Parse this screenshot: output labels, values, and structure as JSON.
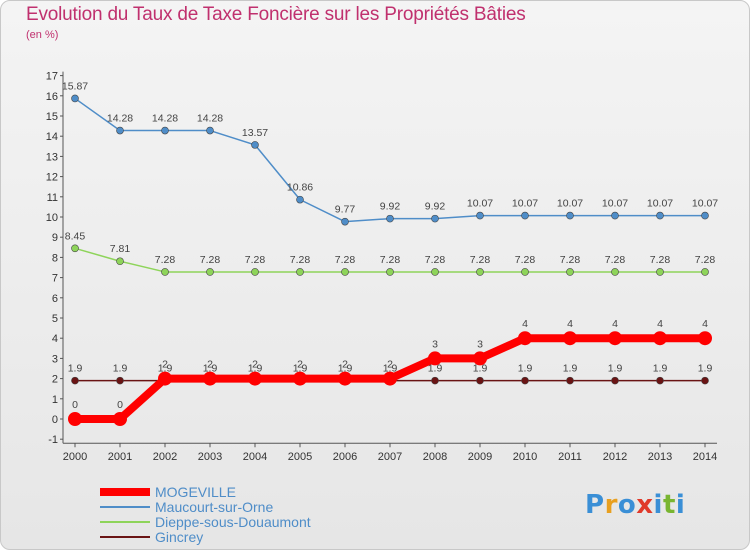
{
  "title": "Evolution du Taux de Taxe Foncière sur les Propriétés Bâties",
  "subtitle": "(en %)",
  "logo": {
    "text": "Proxiti",
    "letters": [
      "P",
      "r",
      "o",
      "x",
      "i",
      "t",
      "i"
    ]
  },
  "colors": {
    "title": "#c0306e",
    "mogeville": "#ff0000",
    "maucourt": "#4f8dc8",
    "dieppe": "#8ed45a",
    "gincrey": "#6a1414",
    "axis": "#555555"
  },
  "chart_data": {
    "type": "line",
    "title": "Evolution du Taux de Taxe Foncière sur les Propriétés Bâties",
    "ylabel": "(en %)",
    "xlabel": "",
    "ylim": [
      -1,
      17
    ],
    "yticks": [
      "-1",
      "0",
      "1",
      "2",
      "3",
      "4",
      "5",
      "6",
      "7",
      "8",
      "9",
      "10",
      "11",
      "12",
      "13",
      "14",
      "15",
      "16",
      "17"
    ],
    "x": [
      "2000",
      "2001",
      "2002",
      "2003",
      "2004",
      "2005",
      "2006",
      "2007",
      "2008",
      "2009",
      "2010",
      "2011",
      "2012",
      "2013",
      "2014"
    ],
    "series": [
      {
        "name": "Maucourt-sur-Orne",
        "color": "#4f8dc8",
        "values": [
          15.87,
          14.28,
          14.28,
          14.28,
          13.57,
          10.86,
          9.77,
          9.92,
          9.92,
          10.07,
          10.07,
          10.07,
          10.07,
          10.07,
          10.07
        ],
        "labels": [
          "15.87",
          "14.28",
          "14.28",
          "14.28",
          "13.57",
          "10.86",
          "9.77",
          "9.92",
          "9.92",
          "10.07",
          "10.07",
          "10.07",
          "10.07",
          "10.07",
          "10.07"
        ]
      },
      {
        "name": "Dieppe-sous-Douaumont",
        "color": "#8ed45a",
        "values": [
          8.45,
          7.81,
          7.28,
          7.28,
          7.28,
          7.28,
          7.28,
          7.28,
          7.28,
          7.28,
          7.28,
          7.28,
          7.28,
          7.28,
          7.28
        ],
        "labels": [
          "8.45",
          "7.81",
          "7.28",
          "7.28",
          "7.28",
          "7.28",
          "7.28",
          "7.28",
          "7.28",
          "7.28",
          "7.28",
          "7.28",
          "7.28",
          "7.28",
          "7.28"
        ]
      },
      {
        "name": "Gincrey",
        "color": "#6a1414",
        "values": [
          1.9,
          1.9,
          1.9,
          1.9,
          1.9,
          1.9,
          1.9,
          1.9,
          1.9,
          1.9,
          1.9,
          1.9,
          1.9,
          1.9,
          1.9
        ],
        "labels": [
          "1.9",
          "1.9",
          "1.9",
          "1.9",
          "1.9",
          "1.9",
          "1.9",
          "1.9",
          "1.9",
          "1.9",
          "1.9",
          "1.9",
          "1.9",
          "1.9",
          "1.9"
        ]
      },
      {
        "name": "MOGEVILLE",
        "color": "#ff0000",
        "values": [
          0,
          0,
          2,
          2,
          2,
          2,
          2,
          2,
          3,
          3,
          4,
          4,
          4,
          4,
          4
        ],
        "labels": [
          "0",
          "0",
          "2",
          "2",
          "2",
          "2",
          "2",
          "2",
          "3",
          "3",
          "4",
          "4",
          "4",
          "4",
          "4"
        ]
      }
    ],
    "legend": [
      "MOGEVILLE",
      "Maucourt-sur-Orne",
      "Dieppe-sous-Douaumont",
      "Gincrey"
    ],
    "grid": false,
    "legend_position": "bottom-left"
  }
}
